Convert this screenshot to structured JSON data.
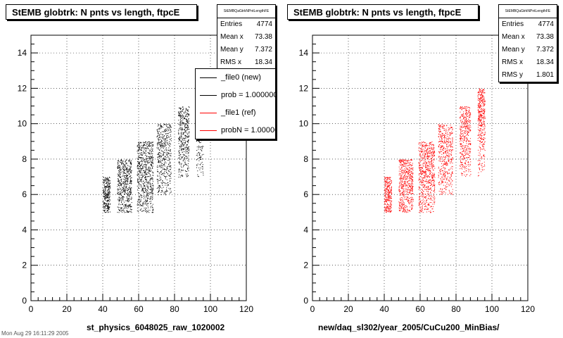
{
  "chart_data": [
    {
      "type": "scatter",
      "title": "StEMB globtrk: N pnts vs length, ftpcE",
      "xlabel": "st_physics_6048025_raw_1020002",
      "ylabel": "",
      "xlim": [
        0,
        120
      ],
      "ylim": [
        0,
        15
      ],
      "x_ticks": [
        "0",
        "20",
        "40",
        "60",
        "80",
        "100",
        "120"
      ],
      "y_ticks": [
        "0",
        "2",
        "4",
        "6",
        "8",
        "10",
        "12",
        "14"
      ],
      "grid": true,
      "marker_color": "#000000",
      "series": [
        {
          "name": "_file0 (new)",
          "color": "#000000",
          "bands": [
            {
              "y": 5,
              "x": [
                40,
                44
              ],
              "density": 1.0
            },
            {
              "y": 6,
              "x": [
                40,
                44
              ],
              "density": 1.0
            },
            {
              "y": 6,
              "x": [
                48,
                56
              ],
              "density": 0.7
            },
            {
              "y": 7,
              "x": [
                48,
                56
              ],
              "density": 0.7
            },
            {
              "y": 5,
              "x": [
                48,
                56
              ],
              "density": 0.5
            },
            {
              "y": 7,
              "x": [
                59,
                68
              ],
              "density": 0.6
            },
            {
              "y": 8,
              "x": [
                59,
                68
              ],
              "density": 0.6
            },
            {
              "y": 6,
              "x": [
                59,
                68
              ],
              "density": 0.5
            },
            {
              "y": 5,
              "x": [
                59,
                68
              ],
              "density": 0.4
            },
            {
              "y": 8,
              "x": [
                70,
                78
              ],
              "density": 0.5
            },
            {
              "y": 9,
              "x": [
                70,
                78
              ],
              "density": 0.5
            },
            {
              "y": 7,
              "x": [
                70,
                78
              ],
              "density": 0.4
            },
            {
              "y": 6,
              "x": [
                70,
                78
              ],
              "density": 0.3
            },
            {
              "y": 9,
              "x": [
                82,
                88
              ],
              "density": 0.6
            },
            {
              "y": 10,
              "x": [
                82,
                88
              ],
              "density": 0.6
            },
            {
              "y": 8,
              "x": [
                82,
                88
              ],
              "density": 0.5
            },
            {
              "y": 7,
              "x": [
                82,
                88
              ],
              "density": 0.3
            },
            {
              "y": 9,
              "x": [
                92,
                96
              ],
              "density": 0.6
            },
            {
              "y": 8,
              "x": [
                92,
                96
              ],
              "density": 0.3
            },
            {
              "y": 7,
              "x": [
                92,
                96
              ],
              "density": 0.2
            }
          ]
        }
      ],
      "stats": {
        "header": "StEMBQaGtrkNPntLengthFE",
        "entries": "4774",
        "mean_x": "73.38",
        "mean_y": "7.372",
        "rms_x": "18.34"
      },
      "legend": [
        {
          "label": "_file0 (new)",
          "color": "#000000"
        },
        {
          "label": "prob = 1.000000",
          "color": "#000000"
        },
        {
          "label": "_file1 (ref)",
          "color": "#ff0000"
        },
        {
          "label": "probN = 1.000000",
          "color": "#ff0000"
        }
      ],
      "legend_position": "top-right"
    },
    {
      "type": "scatter",
      "title": "StEMB globtrk: N pnts vs length, ftpcE",
      "xlabel": "new/daq_sl302/year_2005/CuCu200_MinBias/",
      "ylabel": "",
      "xlim": [
        0,
        120
      ],
      "ylim": [
        0,
        15
      ],
      "x_ticks": [
        "0",
        "20",
        "40",
        "60",
        "80",
        "100",
        "120"
      ],
      "y_ticks": [
        "0",
        "2",
        "4",
        "6",
        "8",
        "10",
        "12",
        "14"
      ],
      "grid": true,
      "marker_color": "#ff0000",
      "series": [
        {
          "name": "_file1 (ref)",
          "color": "#ff0000",
          "bands": [
            {
              "y": 5,
              "x": [
                40,
                44
              ],
              "density": 1.0
            },
            {
              "y": 6,
              "x": [
                40,
                44
              ],
              "density": 1.0
            },
            {
              "y": 6,
              "x": [
                48,
                56
              ],
              "density": 0.7
            },
            {
              "y": 7,
              "x": [
                48,
                56
              ],
              "density": 0.7
            },
            {
              "y": 5,
              "x": [
                48,
                56
              ],
              "density": 0.5
            },
            {
              "y": 7,
              "x": [
                59,
                68
              ],
              "density": 0.6
            },
            {
              "y": 8,
              "x": [
                59,
                68
              ],
              "density": 0.6
            },
            {
              "y": 6,
              "x": [
                59,
                68
              ],
              "density": 0.5
            },
            {
              "y": 5,
              "x": [
                59,
                68
              ],
              "density": 0.4
            },
            {
              "y": 8,
              "x": [
                70,
                78
              ],
              "density": 0.5
            },
            {
              "y": 9,
              "x": [
                70,
                78
              ],
              "density": 0.5
            },
            {
              "y": 7,
              "x": [
                70,
                78
              ],
              "density": 0.4
            },
            {
              "y": 6,
              "x": [
                70,
                78
              ],
              "density": 0.3
            },
            {
              "y": 9,
              "x": [
                82,
                88
              ],
              "density": 0.6
            },
            {
              "y": 10,
              "x": [
                82,
                88
              ],
              "density": 0.6
            },
            {
              "y": 8,
              "x": [
                82,
                88
              ],
              "density": 0.5
            },
            {
              "y": 7,
              "x": [
                82,
                88
              ],
              "density": 0.3
            },
            {
              "y": 10,
              "x": [
                92,
                96
              ],
              "density": 0.9
            },
            {
              "y": 11,
              "x": [
                92,
                96
              ],
              "density": 0.9
            },
            {
              "y": 9,
              "x": [
                92,
                96
              ],
              "density": 0.6
            },
            {
              "y": 8,
              "x": [
                92,
                96
              ],
              "density": 0.3
            },
            {
              "y": 7,
              "x": [
                92,
                96
              ],
              "density": 0.2
            }
          ]
        }
      ],
      "stats": {
        "header": "StEMBQaGtrkNPntLengthFE",
        "entries": "4774",
        "mean_x": "73.38",
        "mean_y": "7.372",
        "rms_x": "18.34",
        "rms_y": "1.801"
      }
    }
  ],
  "footer_note": "Mon Aug 29 16:11:29 2005"
}
